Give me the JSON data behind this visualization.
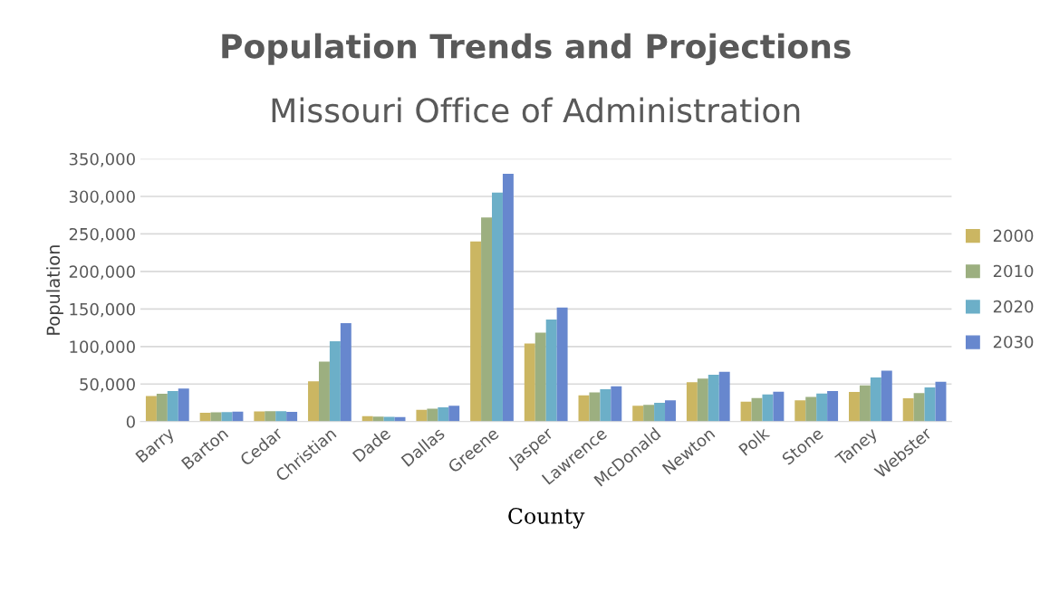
{
  "chart_data": {
    "type": "bar",
    "title": "Population Trends and Projections",
    "subtitle": "Missouri Office of Administration",
    "xlabel": "County",
    "ylabel": "Population",
    "categories": [
      "Barry",
      "Barton",
      "Cedar",
      "Christian",
      "Dade",
      "Dallas",
      "Greene",
      "Jasper",
      "Lawrence",
      "McDonald",
      "Newton",
      "Polk",
      "Stone",
      "Taney",
      "Webster"
    ],
    "series": [
      {
        "name": "2000",
        "color": "#cbb662",
        "values": [
          34000,
          11800,
          13500,
          53700,
          7200,
          15800,
          240000,
          104000,
          35000,
          21000,
          52600,
          26500,
          28300,
          39500,
          31000
        ]
      },
      {
        "name": "2010",
        "color": "#9caf80",
        "values": [
          37000,
          12500,
          13800,
          79800,
          6600,
          17100,
          272000,
          118600,
          39000,
          22400,
          57400,
          31300,
          32800,
          48100,
          38000
        ]
      },
      {
        "name": "2020",
        "color": "#6cafc8",
        "values": [
          40700,
          12700,
          13800,
          107000,
          6400,
          19100,
          305000,
          136000,
          43000,
          25000,
          62300,
          36200,
          37300,
          58900,
          45500
        ]
      },
      {
        "name": "2030",
        "color": "#6787ce",
        "values": [
          44000,
          13200,
          13000,
          131000,
          5900,
          21000,
          330000,
          152000,
          47000,
          28300,
          66400,
          39900,
          40700,
          67900,
          53000
        ]
      }
    ],
    "ylim": [
      0,
      350000
    ],
    "yticks": [
      {
        "value": 0,
        "label": "0"
      },
      {
        "value": 50000,
        "label": "50,000"
      },
      {
        "value": 100000,
        "label": "100,000"
      },
      {
        "value": 150000,
        "label": "150,000"
      },
      {
        "value": 200000,
        "label": "200,000"
      },
      {
        "value": 250000,
        "label": "250,000"
      },
      {
        "value": 300000,
        "label": "300,000"
      },
      {
        "value": 350000,
        "label": "350,000"
      }
    ],
    "grid": "y",
    "legend": "right"
  }
}
